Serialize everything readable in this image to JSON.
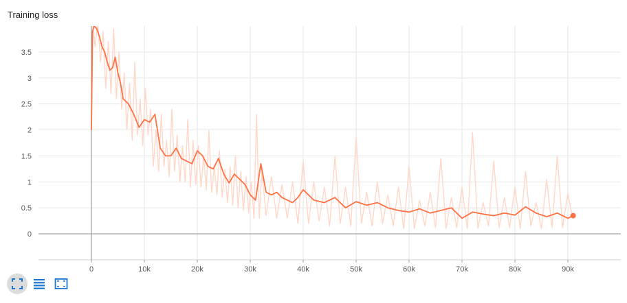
{
  "chart_data": {
    "type": "line",
    "title": "Training loss",
    "xlabel": "",
    "ylabel": "",
    "xlim": [
      -10000,
      100000
    ],
    "ylim": [
      -0.5,
      4
    ],
    "x_ticks": [
      0,
      10000,
      20000,
      30000,
      40000,
      50000,
      60000,
      70000,
      80000,
      90000
    ],
    "x_tick_labels": [
      "0",
      "10k",
      "20k",
      "30k",
      "40k",
      "50k",
      "60k",
      "70k",
      "80k",
      "90k"
    ],
    "y_ticks": [
      0,
      0.5,
      1,
      1.5,
      2,
      2.5,
      3,
      3.5
    ],
    "y_tick_labels": [
      "0",
      "0.5",
      "1",
      "1.5",
      "2",
      "2.5",
      "3",
      "3.5"
    ],
    "grid": true,
    "legend": "none",
    "series": [
      {
        "role": "smoothed",
        "color": "#ff7043",
        "x": [
          0,
          200,
          500,
          1000,
          1500,
          2000,
          2500,
          3000,
          3500,
          4000,
          4500,
          5000,
          5500,
          6000,
          7000,
          8000,
          9000,
          10000,
          11000,
          12000,
          13000,
          14000,
          15000,
          16000,
          17000,
          18000,
          19000,
          20000,
          21000,
          22000,
          23000,
          24000,
          25000,
          26000,
          27000,
          28000,
          29000,
          30000,
          31000,
          32000,
          33000,
          34000,
          35000,
          36000,
          37000,
          38000,
          39000,
          40000,
          42000,
          44000,
          46000,
          48000,
          50000,
          52000,
          54000,
          56000,
          58000,
          60000,
          62000,
          64000,
          66000,
          68000,
          70000,
          72000,
          74000,
          76000,
          78000,
          80000,
          82000,
          84000,
          86000,
          88000,
          89000,
          90000,
          91000
        ],
        "y": [
          2.0,
          3.9,
          4.0,
          3.95,
          3.8,
          3.6,
          3.5,
          3.3,
          3.15,
          3.2,
          3.4,
          3.1,
          2.9,
          2.6,
          2.5,
          2.3,
          2.05,
          2.2,
          2.15,
          2.3,
          1.65,
          1.5,
          1.5,
          1.65,
          1.45,
          1.4,
          1.35,
          1.6,
          1.5,
          1.3,
          1.25,
          1.45,
          1.15,
          0.98,
          1.15,
          1.05,
          0.95,
          0.75,
          0.65,
          1.35,
          0.8,
          0.75,
          0.8,
          0.7,
          0.65,
          0.6,
          0.7,
          0.85,
          0.65,
          0.6,
          0.7,
          0.5,
          0.62,
          0.55,
          0.6,
          0.5,
          0.45,
          0.42,
          0.48,
          0.4,
          0.45,
          0.5,
          0.3,
          0.42,
          0.38,
          0.35,
          0.4,
          0.36,
          0.52,
          0.4,
          0.33,
          0.4,
          0.35,
          0.3,
          0.35
        ]
      },
      {
        "role": "raw",
        "color": "#ffd7c9",
        "x": [
          0,
          300,
          700,
          1200,
          1700,
          2200,
          2700,
          3200,
          3700,
          4200,
          4700,
          5200,
          5700,
          6200,
          6700,
          7200,
          7700,
          8200,
          8700,
          9200,
          9700,
          10200,
          10700,
          11200,
          11700,
          12200,
          12700,
          13200,
          13700,
          14200,
          14700,
          15200,
          15700,
          16200,
          16700,
          17200,
          17700,
          18200,
          18700,
          19200,
          19700,
          20200,
          20700,
          21200,
          21700,
          22200,
          22700,
          23200,
          23700,
          24200,
          24700,
          25200,
          25700,
          26200,
          26700,
          27200,
          27700,
          28200,
          28700,
          29200,
          29700,
          30200,
          30700,
          31200,
          31700,
          32200,
          33000,
          34000,
          35000,
          36000,
          37000,
          38000,
          39000,
          40000,
          41000,
          42000,
          43000,
          44000,
          45000,
          46000,
          47000,
          48000,
          49000,
          50000,
          51000,
          52000,
          53000,
          54000,
          55000,
          56000,
          57000,
          58000,
          59000,
          60000,
          61000,
          62000,
          63000,
          64000,
          65000,
          66000,
          67000,
          68000,
          69000,
          70000,
          71000,
          72000,
          73000,
          74000,
          75000,
          76000,
          77000,
          78000,
          79000,
          80000,
          81000,
          82000,
          83000,
          84000,
          85000,
          86000,
          87000,
          88000,
          89000,
          90000,
          90800
        ],
        "y": [
          2.0,
          4.0,
          3.6,
          4.1,
          3.3,
          3.9,
          2.8,
          3.7,
          2.7,
          3.95,
          2.6,
          3.5,
          2.4,
          3.1,
          2.0,
          2.9,
          1.8,
          3.3,
          1.9,
          2.6,
          1.7,
          2.8,
          1.9,
          2.4,
          1.3,
          2.0,
          1.2,
          2.3,
          1.3,
          1.8,
          1.1,
          2.4,
          1.2,
          1.9,
          1.0,
          1.7,
          1.0,
          2.2,
          0.9,
          1.8,
          0.95,
          1.7,
          0.9,
          1.5,
          0.85,
          2.0,
          0.8,
          1.3,
          0.75,
          1.6,
          0.7,
          1.25,
          0.6,
          1.3,
          0.55,
          1.5,
          0.5,
          1.2,
          0.45,
          1.1,
          0.4,
          1.0,
          0.3,
          2.3,
          0.3,
          1.2,
          0.35,
          1.1,
          0.3,
          0.95,
          0.3,
          1.0,
          0.2,
          1.4,
          0.2,
          1.0,
          0.25,
          0.9,
          0.15,
          1.5,
          0.2,
          0.9,
          0.15,
          1.85,
          0.2,
          0.8,
          0.15,
          1.0,
          0.2,
          0.75,
          0.15,
          0.9,
          0.1,
          1.3,
          0.1,
          0.65,
          0.15,
          0.8,
          0.12,
          1.45,
          0.1,
          0.7,
          0.12,
          0.9,
          0.1,
          1.95,
          0.1,
          0.6,
          0.15,
          1.4,
          0.12,
          0.7,
          0.12,
          0.9,
          0.1,
          1.2,
          0.15,
          0.6,
          0.1,
          1.05,
          0.12,
          1.5,
          0.12,
          0.78,
          0.35
        ]
      }
    ],
    "toolbar": {
      "buttons": [
        {
          "name": "expand-icon",
          "active": true,
          "color": "#1976d2"
        },
        {
          "name": "list-icon",
          "active": false,
          "color": "#1976d2"
        },
        {
          "name": "fit-domain-icon",
          "active": false,
          "color": "#1976d2"
        }
      ]
    }
  }
}
